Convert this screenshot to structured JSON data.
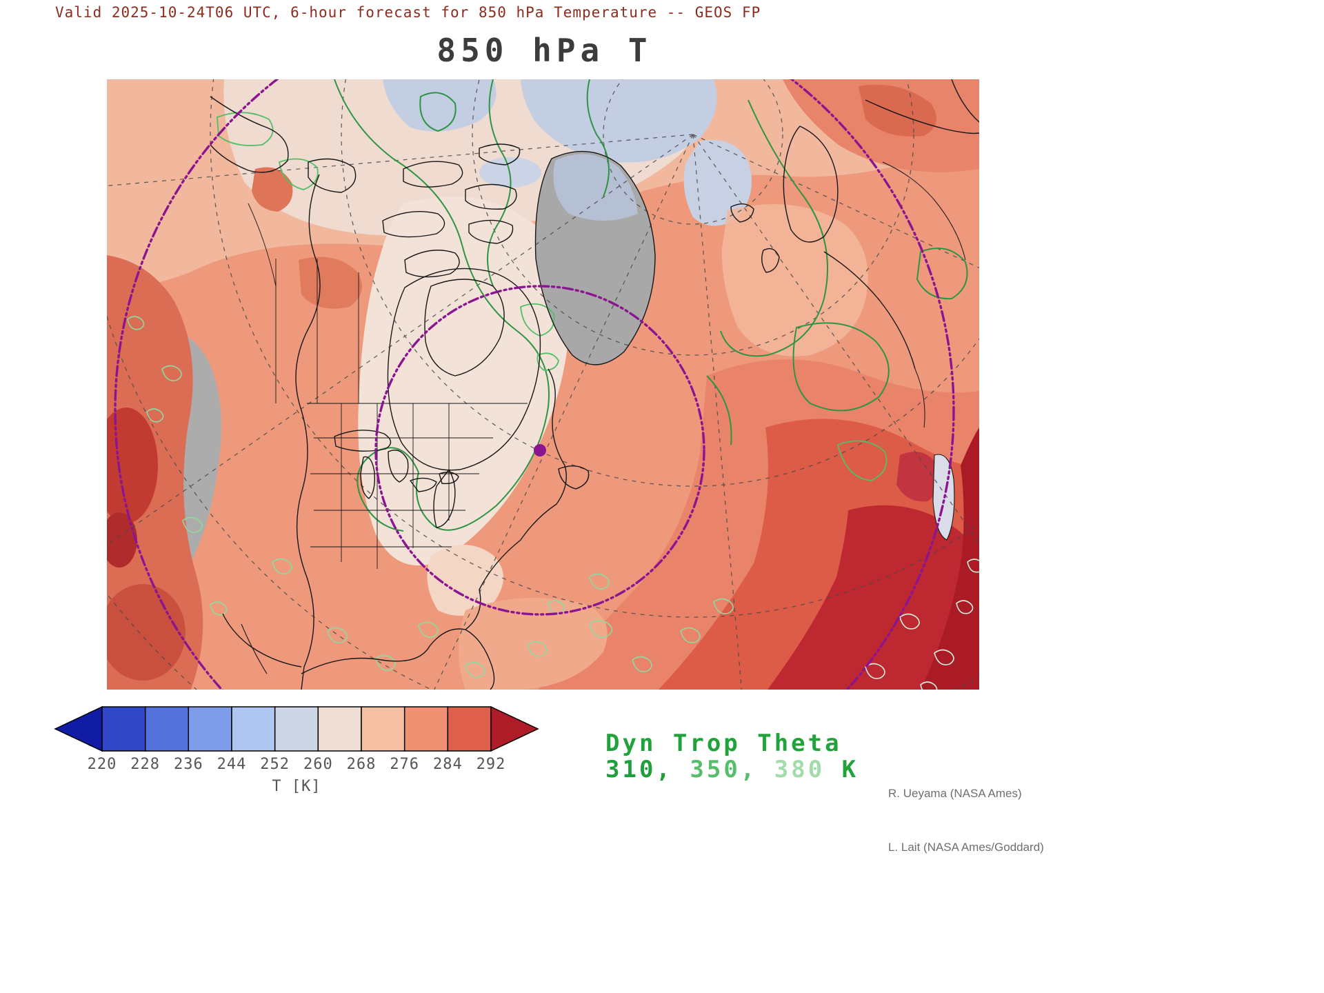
{
  "header": {
    "valid_line": "Valid 2025-10-24T06 UTC, 6-hour forecast for 850 hPa Temperature -- GEOS FP",
    "title": "850 hPa T"
  },
  "map": {
    "description": "Polar stereographic filled-contour map of 850 hPa temperature over North America, Greenland, the Arctic and Europe",
    "overlays": {
      "green_contours": "Dyn Trop Theta contours 310, 350, 380 K",
      "purple_dashdot": "dash-dot purple contour with marker dot",
      "gray_fill": "gray shading where field is masked",
      "graticule": "dashed gray latitude/longitude lines"
    }
  },
  "colorbar": {
    "ticks": [
      "220",
      "228",
      "236",
      "244",
      "252",
      "260",
      "268",
      "276",
      "284",
      "292"
    ],
    "unit_label": "T [K]",
    "segment_colors": [
      "#3148C8",
      "#5472DC",
      "#7E9CEA",
      "#AFC6F2",
      "#CDD6E6",
      "#EDDDD3",
      "#F5BFA4",
      "#EF9172",
      "#DE604A"
    ],
    "under_arrow_color": "#101CA4",
    "over_arrow_color": "#AE1C28",
    "outline_color": "#000000"
  },
  "legend": {
    "title": "Dyn Trop Theta",
    "title_color": "#21A23B",
    "values": [
      {
        "text": "310",
        "color": "#1F9E3C"
      },
      {
        "text": "350",
        "color": "#58BE6E"
      },
      {
        "text": "380",
        "color": "#A4DCA9"
      }
    ],
    "separator": ", ",
    "unit": "K",
    "unit_color": "#21A23B"
  },
  "credits": {
    "line1": "R. Ueyama (NASA Ames)",
    "line2": "L. Lait (NASA Ames/Goddard)"
  }
}
